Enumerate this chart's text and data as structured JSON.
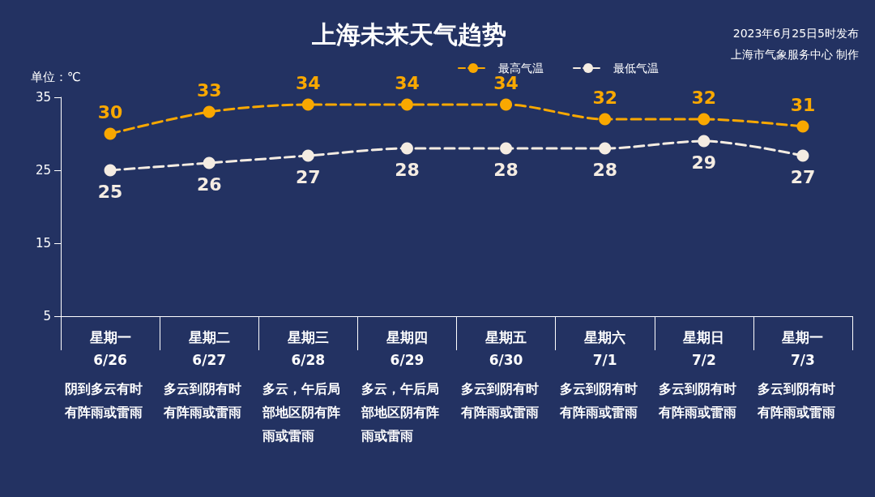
{
  "chart_data": {
    "type": "line",
    "title": "上海未来天气趋势",
    "ylabel": "单位：℃",
    "categories": [
      "星期一\n6/26",
      "星期二\n6/27",
      "星期三\n6/28",
      "星期四\n6/29",
      "星期五\n6/30",
      "星期六\n7/1",
      "星期日\n7/2",
      "星期一\n7/3"
    ],
    "series": [
      {
        "name": "最高气温",
        "color": "#f9a800",
        "values": [
          30,
          33,
          34,
          34,
          34,
          32,
          32,
          31
        ]
      },
      {
        "name": "最低气温",
        "color": "#f4ece2",
        "values": [
          25,
          26,
          27,
          28,
          28,
          28,
          29,
          27
        ]
      }
    ],
    "ylim": [
      5,
      35
    ],
    "yticks": [
      5,
      15,
      25,
      35
    ],
    "grid": false,
    "legend": "top right",
    "marker": "circle",
    "line_style": "dashed",
    "data_labels": true,
    "annotations": [
      "2023年6月25日5时发布",
      "上海市气象服务中心 制作",
      "阴到多云有时有阵雨或雷雨",
      "多云到阴有时有阵雨或雷雨",
      "多云，午后局部地区阴有阵雨或雷雨",
      "多云，午后局部地区阴有阵雨或雷雨",
      "多云到阴有时有阵雨或雷雨",
      "多云到阴有时有阵雨或雷雨",
      "多云到阴有时有阵雨或雷雨",
      "多云到阴有时有阵雨或雷雨"
    ]
  }
}
